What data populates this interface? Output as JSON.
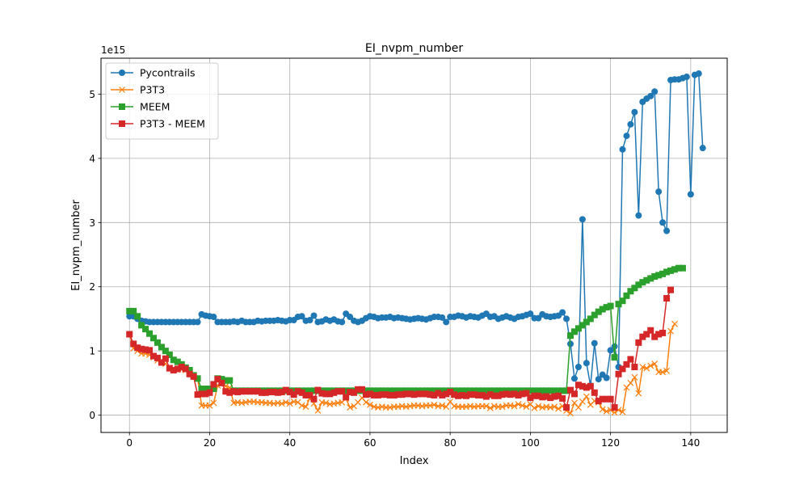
{
  "chart_data": {
    "type": "line",
    "title": "EI_nvpm_number",
    "xlabel": "Index",
    "ylabel": "EI_nvpm_number",
    "offset_label": "1e15",
    "xlim": [
      -7.1,
      149.1
    ],
    "ylim": [
      -0.27,
      5.56
    ],
    "x_ticks": [
      0,
      20,
      40,
      60,
      80,
      100,
      120,
      140
    ],
    "y_ticks": [
      0,
      1,
      2,
      3,
      4,
      5
    ],
    "grid": true,
    "legend_position": "upper-left",
    "series": [
      {
        "name": "Pycontrails",
        "color": "#1f77b4",
        "marker": "circle",
        "values": [
          1.54,
          1.54,
          1.5,
          1.47,
          1.46,
          1.45,
          1.45,
          1.45,
          1.45,
          1.45,
          1.45,
          1.45,
          1.45,
          1.45,
          1.45,
          1.45,
          1.45,
          1.45,
          1.57,
          1.55,
          1.54,
          1.53,
          1.45,
          1.45,
          1.45,
          1.45,
          1.46,
          1.45,
          1.47,
          1.45,
          1.45,
          1.45,
          1.47,
          1.46,
          1.47,
          1.47,
          1.47,
          1.48,
          1.47,
          1.46,
          1.48,
          1.48,
          1.53,
          1.54,
          1.47,
          1.48,
          1.55,
          1.45,
          1.46,
          1.49,
          1.47,
          1.49,
          1.46,
          1.45,
          1.58,
          1.53,
          1.47,
          1.45,
          1.47,
          1.51,
          1.54,
          1.53,
          1.51,
          1.52,
          1.52,
          1.53,
          1.51,
          1.52,
          1.51,
          1.5,
          1.49,
          1.5,
          1.51,
          1.5,
          1.49,
          1.51,
          1.53,
          1.53,
          1.52,
          1.45,
          1.53,
          1.53,
          1.55,
          1.54,
          1.52,
          1.54,
          1.53,
          1.52,
          1.55,
          1.58,
          1.53,
          1.54,
          1.5,
          1.52,
          1.54,
          1.52,
          1.5,
          1.53,
          1.54,
          1.56,
          1.58,
          1.51,
          1.51,
          1.57,
          1.54,
          1.53,
          1.54,
          1.55,
          1.6,
          1.5,
          1.11,
          0.57,
          0.75,
          3.05,
          0.81,
          0.46,
          1.12,
          0.56,
          0.63,
          0.58,
          1.01,
          1.07,
          0.75,
          4.14,
          4.35,
          4.53,
          4.72,
          3.11,
          4.88,
          4.93,
          4.97,
          5.04,
          3.48,
          3.0,
          2.87,
          5.22,
          5.23,
          5.23,
          5.25,
          5.27,
          3.44,
          5.3,
          5.32,
          4.16
        ]
      },
      {
        "name": "P3T3",
        "color": "#ff7f0e",
        "marker": "x",
        "values": [
          1.26,
          1.04,
          1.0,
          0.96,
          0.96,
          0.94,
          0.9,
          0.85,
          0.82,
          0.8,
          0.74,
          0.71,
          0.71,
          0.71,
          0.7,
          0.68,
          0.62,
          0.57,
          0.15,
          0.15,
          0.15,
          0.19,
          0.46,
          0.55,
          0.45,
          0.43,
          0.19,
          0.2,
          0.19,
          0.2,
          0.21,
          0.21,
          0.2,
          0.2,
          0.19,
          0.19,
          0.18,
          0.19,
          0.18,
          0.2,
          0.18,
          0.21,
          0.2,
          0.15,
          0.13,
          0.26,
          0.18,
          0.07,
          0.2,
          0.19,
          0.17,
          0.18,
          0.19,
          0.2,
          0.26,
          0.12,
          0.14,
          0.2,
          0.27,
          0.2,
          0.16,
          0.13,
          0.12,
          0.13,
          0.12,
          0.12,
          0.13,
          0.13,
          0.14,
          0.13,
          0.14,
          0.15,
          0.15,
          0.14,
          0.15,
          0.15,
          0.16,
          0.14,
          0.15,
          0.13,
          0.21,
          0.14,
          0.13,
          0.13,
          0.13,
          0.14,
          0.13,
          0.14,
          0.14,
          0.14,
          0.11,
          0.14,
          0.13,
          0.13,
          0.15,
          0.15,
          0.14,
          0.17,
          0.15,
          0.13,
          0.17,
          0.11,
          0.14,
          0.12,
          0.13,
          0.12,
          0.13,
          0.1,
          0.14,
          0.07,
          0.03,
          0.19,
          0.12,
          0.21,
          0.29,
          0.16,
          0.22,
          0.2,
          0.09,
          0.06,
          0.08,
          0.04,
          0.08,
          0.05,
          0.43,
          0.5,
          0.59,
          0.34,
          0.75,
          0.73,
          0.77,
          0.8,
          0.67,
          0.67,
          0.69,
          1.31,
          1.42
        ]
      },
      {
        "name": "MEEM",
        "color": "#2ca02c",
        "marker": "square",
        "values": [
          1.62,
          1.62,
          1.54,
          1.4,
          1.34,
          1.27,
          1.2,
          1.13,
          1.06,
          1.0,
          0.94,
          0.86,
          0.83,
          0.79,
          0.74,
          0.7,
          0.62,
          0.57,
          0.41,
          0.41,
          0.41,
          0.41,
          0.57,
          0.56,
          0.54,
          0.54,
          0.38,
          0.38,
          0.38,
          0.38,
          0.38,
          0.38,
          0.38,
          0.38,
          0.38,
          0.38,
          0.38,
          0.38,
          0.38,
          0.38,
          0.38,
          0.38,
          0.38,
          0.38,
          0.38,
          0.38,
          0.38,
          0.38,
          0.38,
          0.38,
          0.38,
          0.38,
          0.38,
          0.38,
          0.38,
          0.38,
          0.38,
          0.38,
          0.38,
          0.38,
          0.38,
          0.38,
          0.38,
          0.38,
          0.38,
          0.38,
          0.38,
          0.38,
          0.38,
          0.38,
          0.38,
          0.38,
          0.38,
          0.38,
          0.38,
          0.38,
          0.38,
          0.38,
          0.38,
          0.38,
          0.38,
          0.38,
          0.38,
          0.38,
          0.38,
          0.38,
          0.38,
          0.38,
          0.38,
          0.38,
          0.38,
          0.38,
          0.38,
          0.38,
          0.38,
          0.38,
          0.38,
          0.38,
          0.38,
          0.38,
          0.38,
          0.38,
          0.38,
          0.38,
          0.38,
          0.38,
          0.38,
          0.38,
          0.38,
          0.38,
          1.24,
          1.3,
          1.35,
          1.4,
          1.45,
          1.5,
          1.56,
          1.61,
          1.65,
          1.68,
          1.7,
          0.9,
          1.73,
          1.78,
          1.86,
          1.93,
          1.98,
          2.03,
          2.07,
          2.1,
          2.13,
          2.16,
          2.18,
          2.2,
          2.23,
          2.25,
          2.27,
          2.29,
          2.29
        ]
      },
      {
        "name": "P3T3 - MEEM",
        "color": "#d62728",
        "marker": "square",
        "values": [
          1.26,
          1.11,
          1.05,
          1.03,
          1.02,
          1.01,
          0.92,
          0.89,
          0.82,
          0.88,
          0.73,
          0.7,
          0.72,
          0.75,
          0.72,
          0.64,
          0.6,
          0.32,
          0.33,
          0.33,
          0.35,
          0.48,
          0.56,
          0.5,
          0.37,
          0.35,
          0.37,
          0.36,
          0.37,
          0.37,
          0.37,
          0.37,
          0.37,
          0.35,
          0.35,
          0.36,
          0.36,
          0.35,
          0.36,
          0.39,
          0.36,
          0.32,
          0.37,
          0.35,
          0.31,
          0.31,
          0.25,
          0.39,
          0.34,
          0.33,
          0.33,
          0.35,
          0.37,
          0.37,
          0.28,
          0.36,
          0.35,
          0.4,
          0.4,
          0.32,
          0.33,
          0.31,
          0.31,
          0.32,
          0.32,
          0.31,
          0.31,
          0.32,
          0.32,
          0.33,
          0.33,
          0.32,
          0.33,
          0.33,
          0.33,
          0.32,
          0.31,
          0.34,
          0.31,
          0.33,
          0.36,
          0.32,
          0.3,
          0.31,
          0.3,
          0.32,
          0.32,
          0.31,
          0.31,
          0.29,
          0.32,
          0.3,
          0.3,
          0.32,
          0.33,
          0.32,
          0.33,
          0.31,
          0.33,
          0.34,
          0.27,
          0.3,
          0.3,
          0.28,
          0.29,
          0.27,
          0.29,
          0.3,
          0.26,
          0.12,
          0.39,
          0.33,
          0.47,
          0.45,
          0.43,
          0.45,
          0.35,
          0.22,
          0.25,
          0.25,
          0.25,
          0.12,
          0.64,
          0.72,
          0.79,
          0.87,
          0.75,
          1.13,
          1.22,
          1.26,
          1.32,
          1.22,
          1.26,
          1.28,
          1.82,
          1.95
        ]
      }
    ]
  }
}
